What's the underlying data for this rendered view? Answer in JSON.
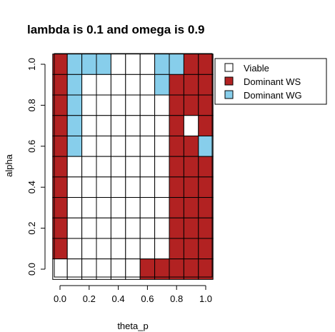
{
  "chart_data": {
    "type": "heatmap",
    "title": "lambda is  0.1  and omega is  0.9",
    "xlabel": "theta_p",
    "ylabel": "alpha",
    "x_ticks": [
      "0.0",
      "0.2",
      "0.4",
      "0.6",
      "0.8",
      "1.0"
    ],
    "y_ticks": [
      "0.0",
      "0.2",
      "0.4",
      "0.6",
      "0.8",
      "1.0"
    ],
    "x_values": [
      0.0,
      0.1,
      0.2,
      0.3,
      0.4,
      0.5,
      0.6,
      0.7,
      0.8,
      0.9,
      1.0
    ],
    "y_values": [
      0.0,
      0.1,
      0.2,
      0.3,
      0.4,
      0.5,
      0.6,
      0.7,
      0.8,
      0.9,
      1.0
    ],
    "xlim": [
      -0.05,
      1.05
    ],
    "ylim": [
      -0.05,
      1.05
    ],
    "legend_position": "top-right",
    "legend": [
      {
        "label": "Viable",
        "color": "#ffffff"
      },
      {
        "label": "Dominant WS",
        "color": "#b22222"
      },
      {
        "label": "Dominant WG",
        "color": "#87ceeb"
      }
    ],
    "state_codes": {
      "V": "Viable",
      "S": "Dominant WS",
      "G": "Dominant WG"
    },
    "grid_rows_top_to_bottom": [
      "SGGGVVVGGSS",
      "SGVVVVVGSSS",
      "SGVVVVVVSSS",
      "SGVVVVVVSVS",
      "SGVVVVVVSSG",
      "SVVVVVVVSSS",
      "SVVVVVVVSSS",
      "SVVVVVVVSSS",
      "SVVVVVVVSSS",
      "SVVVVVVVSSS",
      "VVVVVVSSSSS"
    ]
  }
}
